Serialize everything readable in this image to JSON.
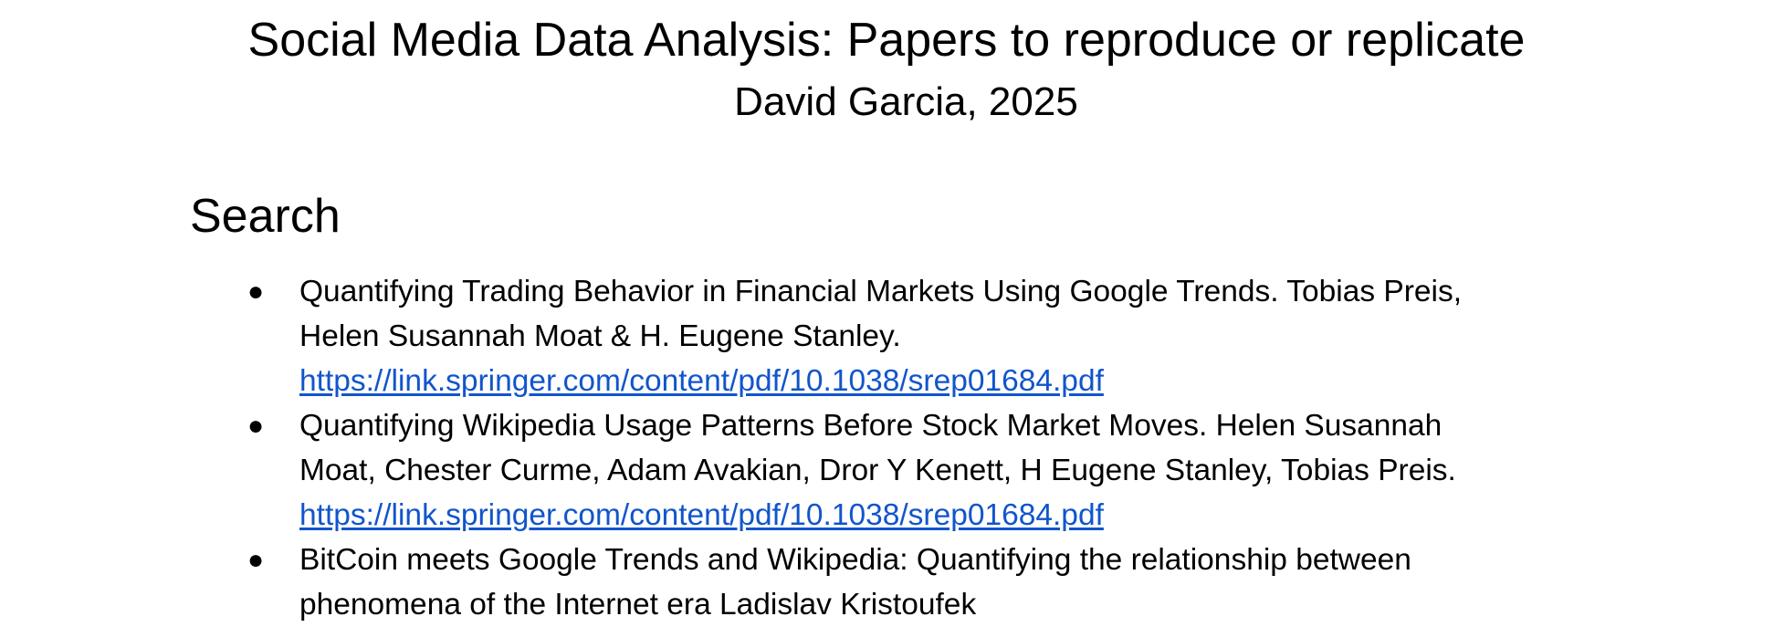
{
  "document": {
    "title": "Social Media Data Analysis: Papers to reproduce or replicate",
    "subtitle": "David Garcia, 2025"
  },
  "sections": [
    {
      "heading": "Search",
      "items": [
        {
          "lines": [
            "Quantifying Trading Behavior in Financial Markets Using Google Trends. Tobias Preis,",
            "Helen Susannah Moat & H. Eugene Stanley."
          ],
          "link": "https://link.springer.com/content/pdf/10.1038/srep01684.pdf"
        },
        {
          "lines": [
            "Quantifying Wikipedia Usage Patterns Before Stock Market Moves. Helen Susannah",
            "Moat, Chester Curme, Adam Avakian, Dror Y Kenett, H Eugene Stanley, Tobias Preis."
          ],
          "link": "https://link.springer.com/content/pdf/10.1038/srep01684.pdf"
        },
        {
          "lines": [
            "BitCoin meets Google Trends and Wikipedia: Quantifying the relationship between",
            "phenomena of the Internet era Ladislav Kristoufek"
          ],
          "link": ""
        }
      ]
    }
  ],
  "colors": {
    "text": "#000000",
    "link": "#1155cc",
    "background": "#ffffff"
  }
}
